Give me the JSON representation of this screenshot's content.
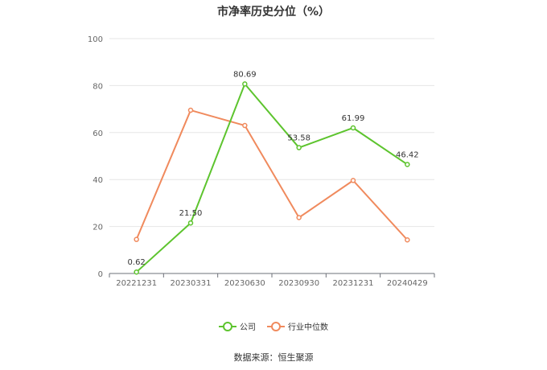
{
  "chart_data": {
    "type": "line",
    "title": "市净率历史分位（%）",
    "categories": [
      "20221231",
      "20230331",
      "20230630",
      "20230930",
      "20231231",
      "20240429"
    ],
    "ylim": [
      0,
      100
    ],
    "yticks": [
      0,
      20,
      40,
      60,
      80,
      100
    ],
    "grid": true,
    "legend_position": "bottom",
    "series": [
      {
        "name": "公司",
        "color": "#5dc42e",
        "values": [
          0.62,
          21.5,
          80.69,
          53.58,
          61.99,
          46.42
        ],
        "labels": [
          "0.62",
          "21.50",
          "80.69",
          "53.58",
          "61.99",
          "46.42"
        ],
        "show_labels": true
      },
      {
        "name": "行业中位数",
        "color": "#f08a5d",
        "values": [
          14.5,
          69.5,
          63.0,
          23.8,
          39.6,
          14.3
        ],
        "show_labels": false
      }
    ]
  },
  "source_note": "数据来源：恒生聚源"
}
